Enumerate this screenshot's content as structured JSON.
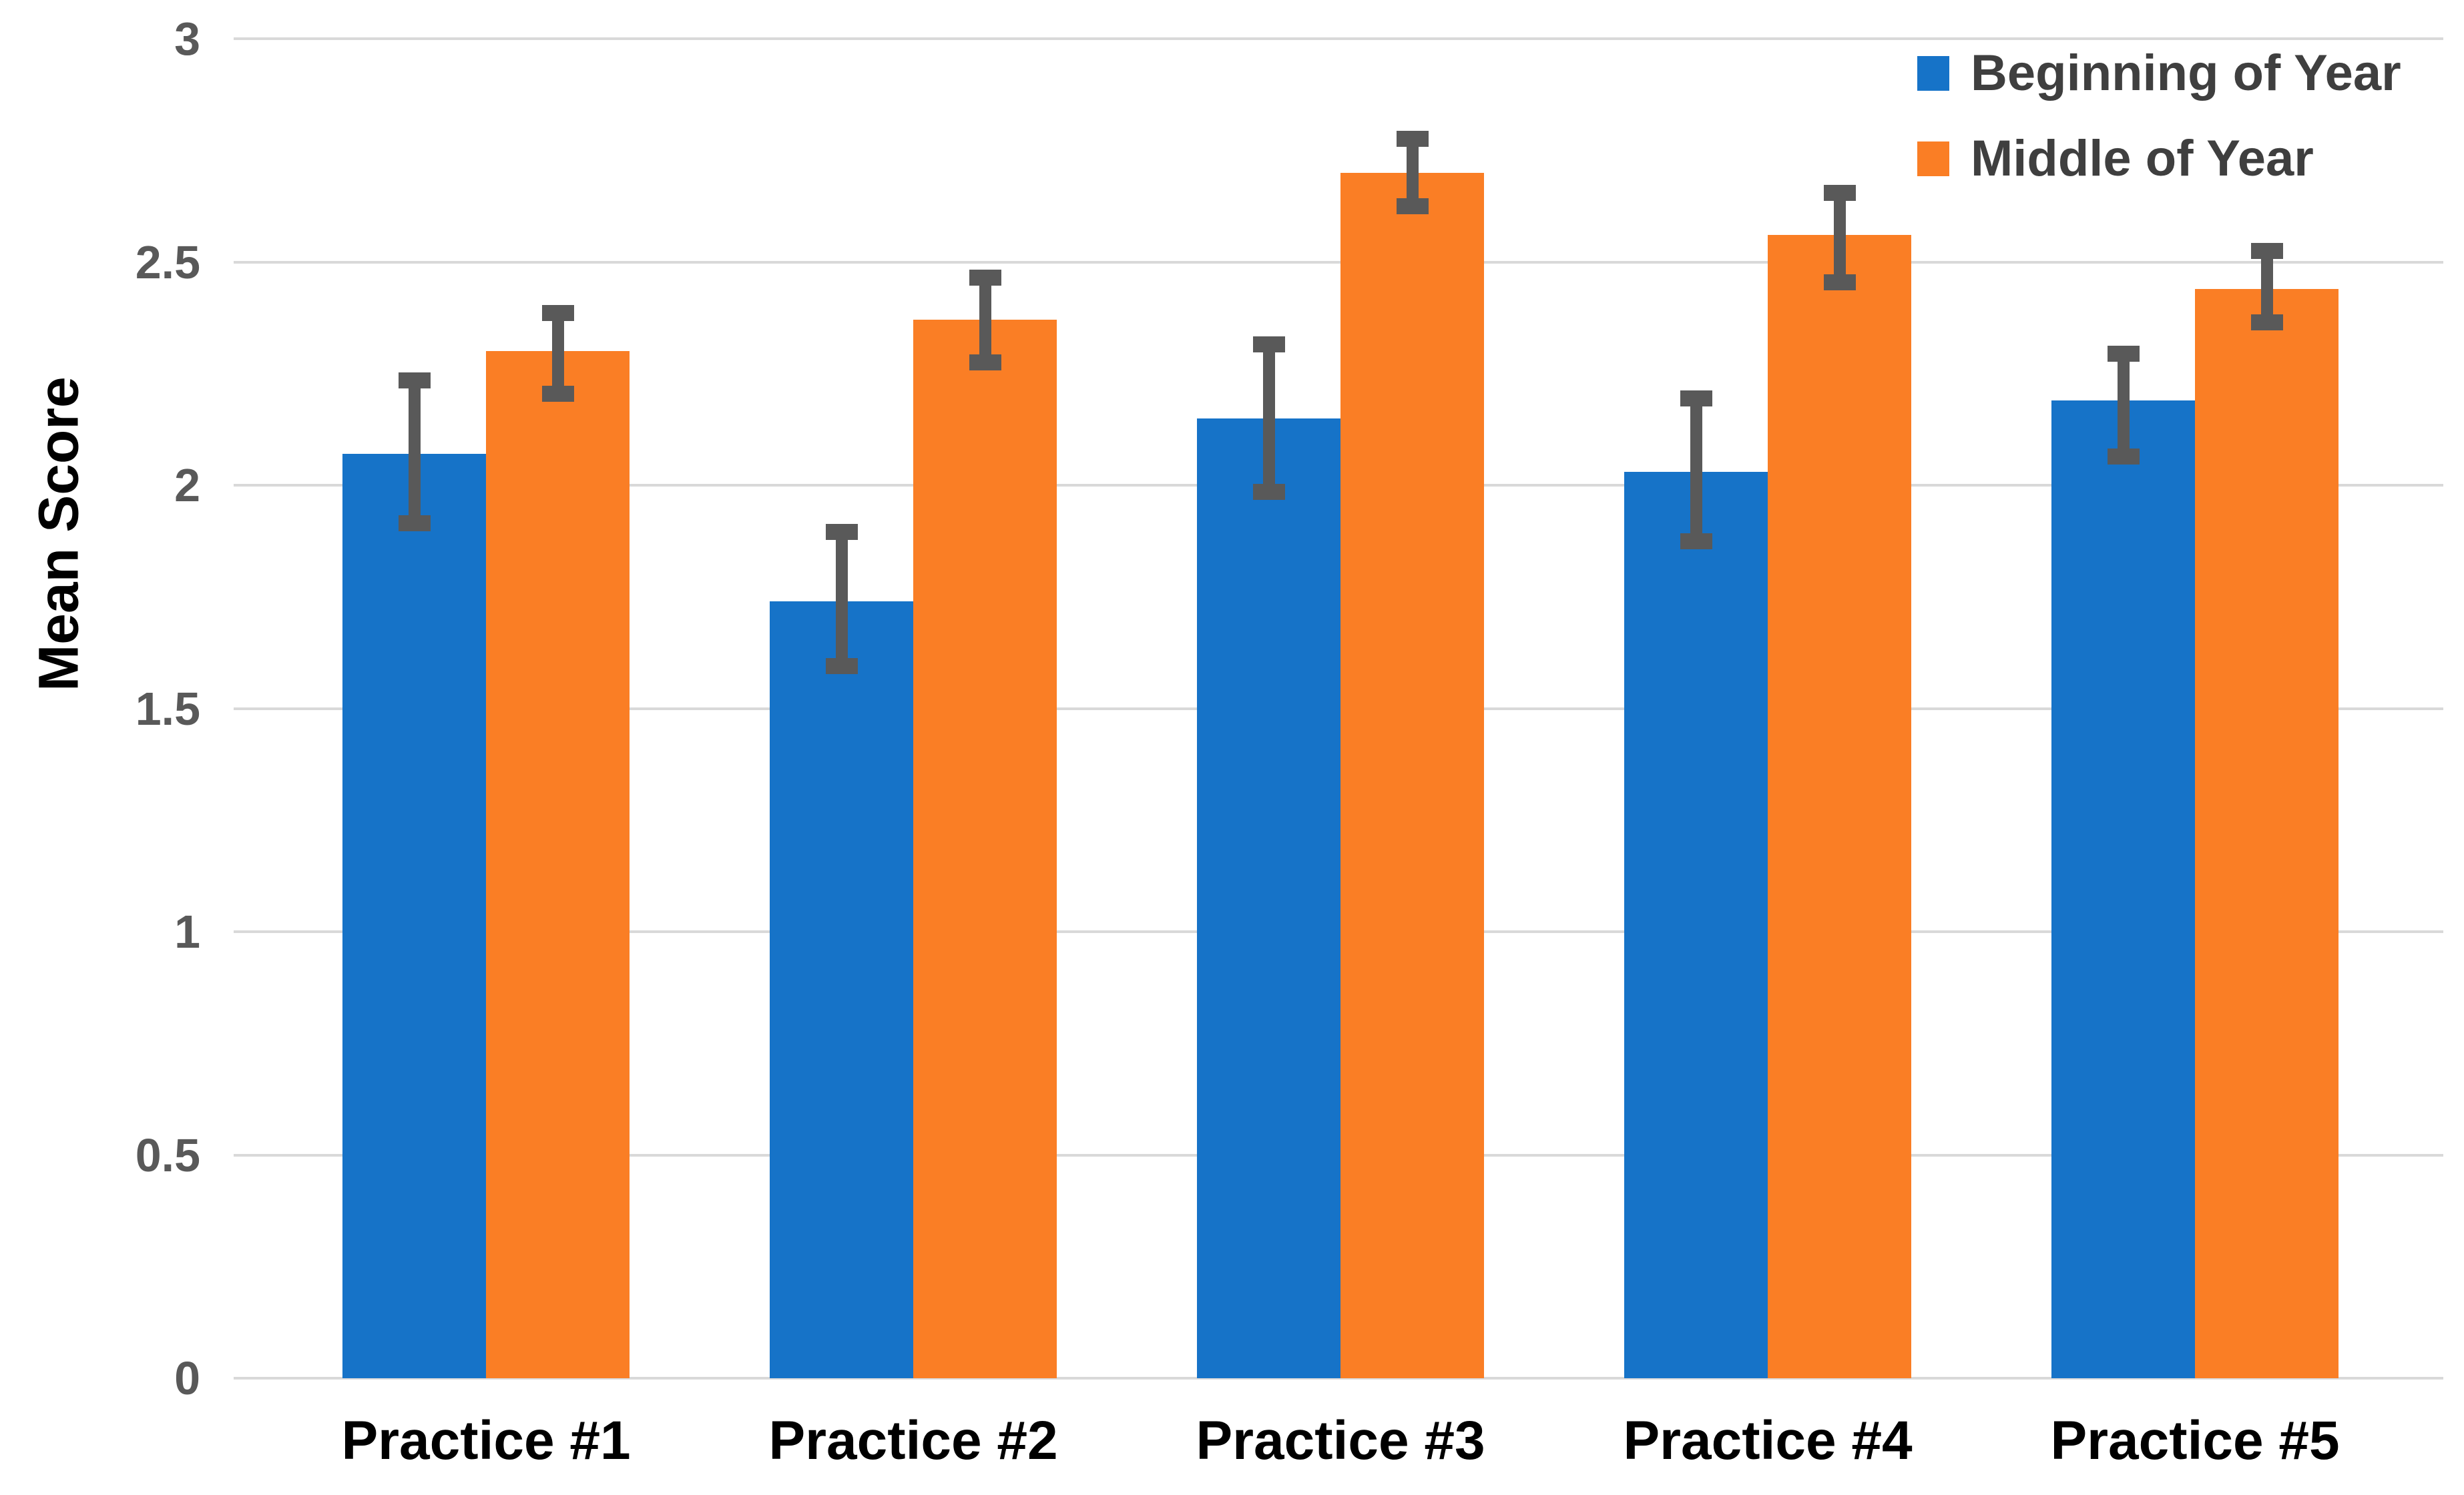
{
  "chart_data": {
    "type": "bar",
    "title": "",
    "xlabel": "",
    "ylabel": "Mean Score",
    "ylim": [
      0,
      3
    ],
    "yticks": [
      0,
      0.5,
      1,
      1.5,
      2,
      2.5,
      3
    ],
    "ytick_labels": [
      "0",
      "0.5",
      "1",
      "1.5",
      "2",
      "2.5",
      "3"
    ],
    "grid": true,
    "legend_position": "top-right",
    "categories": [
      "Practice #1",
      "Practice #2",
      "Practice #3",
      "Practice #4",
      "Practice #5"
    ],
    "series": [
      {
        "name": "Beginning of Year",
        "color": "#1673C8",
        "values": [
          2.07,
          1.74,
          2.15,
          2.03,
          2.19
        ],
        "error_low": [
          1.9,
          1.58,
          1.97,
          1.86,
          2.05
        ],
        "error_high": [
          2.25,
          1.91,
          2.33,
          2.21,
          2.31
        ]
      },
      {
        "name": "Middle of Year",
        "color": "#FA7E25",
        "values": [
          2.3,
          2.37,
          2.7,
          2.56,
          2.44
        ],
        "error_low": [
          2.19,
          2.26,
          2.61,
          2.44,
          2.35
        ],
        "error_high": [
          2.4,
          2.48,
          2.79,
          2.67,
          2.54
        ]
      }
    ],
    "colors": {
      "error_bar": "#595959",
      "gridline": "#D9D9D9",
      "tick_label": "#595959",
      "axis_text": "#000000",
      "legend_text": "#3F3F3F",
      "background": "#FFFFFF"
    }
  }
}
